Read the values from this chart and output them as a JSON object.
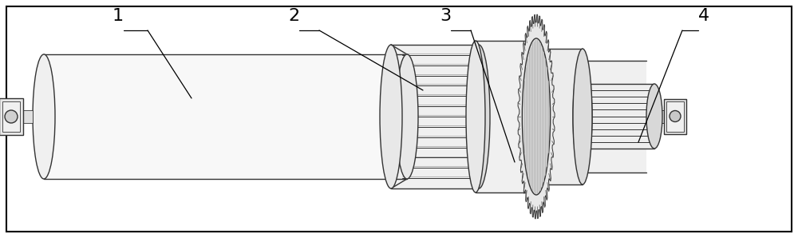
{
  "background_color": "#ffffff",
  "line_color": "#333333",
  "label_color": "#000000",
  "label_fontsize": 16,
  "fig_width": 10.0,
  "fig_height": 2.98,
  "dpi": 100
}
